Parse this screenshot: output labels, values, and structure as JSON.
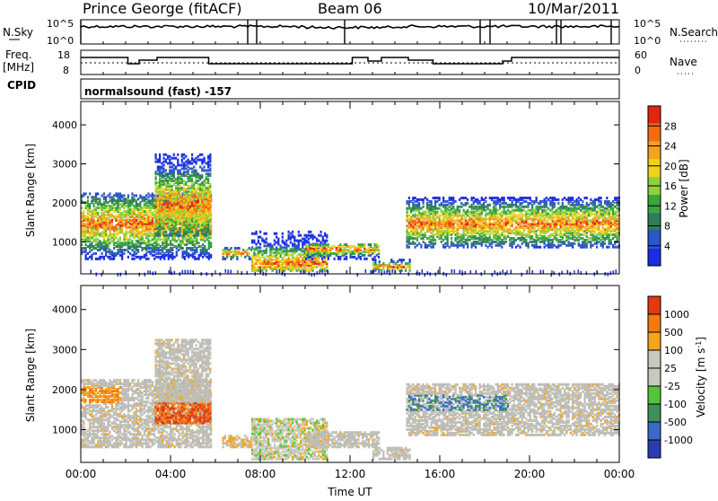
{
  "header": {
    "station": "Prince George (fitACF)",
    "beam": "Beam 06",
    "date": "10/Mar/2011"
  },
  "noise_panel": {
    "left_label": "N.Sky",
    "right_label": "N.Search",
    "ticks_left": [
      "10^5",
      "10^0"
    ],
    "ticks_right": [
      "10^5",
      "10^0"
    ]
  },
  "freq_panel": {
    "left_label_1": "Freq.",
    "left_label_2": "[MHz]",
    "ticks_left": [
      "18",
      "8"
    ],
    "right_label": "Nave",
    "ticks_right": [
      "60",
      "0"
    ]
  },
  "cpid": {
    "label": "CPID",
    "value": "normalsound (fast) -157"
  },
  "chart_data": [
    {
      "type": "heatmap",
      "name": "power",
      "ylabel": "Slant Range [km]",
      "ylim": [
        180,
        4600
      ],
      "yticks": [
        "1000",
        "2000",
        "3000",
        "4000"
      ],
      "xlim": [
        "00:00",
        "24:00"
      ],
      "colorbar": {
        "label": "Power [dB]",
        "ticks": [
          "4",
          "8",
          "12",
          "16",
          "20",
          "24",
          "28"
        ],
        "colors": [
          "#1a2fe0",
          "#2b55c8",
          "#2f7e5a",
          "#3aa63c",
          "#8ed23a",
          "#f0d21e",
          "#f7a11c",
          "#f26b12",
          "#e02612"
        ]
      },
      "echo_regions": [
        {
          "t_start": 0.0,
          "t_end": 5.8,
          "range_start": 600,
          "range_end": 2300,
          "peak_range": 1500
        },
        {
          "t_start": 3.3,
          "t_end": 5.8,
          "range_start": 1200,
          "range_end": 3300,
          "peak_range": 2000
        },
        {
          "t_start": 6.3,
          "t_end": 7.6,
          "range_start": 600,
          "range_end": 900,
          "peak_range": 750
        },
        {
          "t_start": 7.6,
          "t_end": 11.0,
          "range_start": 300,
          "range_end": 1300,
          "peak_range": 500
        },
        {
          "t_start": 10.0,
          "t_end": 13.3,
          "range_start": 600,
          "range_end": 1000,
          "peak_range": 850
        },
        {
          "t_start": 13.0,
          "t_end": 14.7,
          "range_start": 300,
          "range_end": 600,
          "peak_range": 400
        },
        {
          "t_start": 14.5,
          "t_end": 24.0,
          "range_start": 900,
          "range_end": 2200,
          "peak_range": 1500
        }
      ]
    },
    {
      "type": "heatmap",
      "name": "velocity",
      "ylabel": "Slant Range [km]",
      "ylim": [
        180,
        4600
      ],
      "yticks": [
        "1000",
        "2000",
        "3000",
        "4000"
      ],
      "xticks": [
        "00:00",
        "04:00",
        "08:00",
        "12:00",
        "16:00",
        "20:00",
        "00:00"
      ],
      "xlabel": "Time UT",
      "colorbar": {
        "label": "Velocity [m s^-1]",
        "ticks": [
          "1000",
          "500",
          "100",
          "25",
          "-25",
          "-100",
          "-500",
          "-1000"
        ],
        "colors": [
          "#2b3cb0",
          "#3a6ac8",
          "#3f8f5a",
          "#55c43a",
          "#c8c8c0",
          "#c8c8c0",
          "#f4a51c",
          "#f27a12",
          "#e03a12"
        ]
      }
    }
  ],
  "colors": {
    "frame": "#000000",
    "ground_scatter": "#bdbdb6"
  }
}
